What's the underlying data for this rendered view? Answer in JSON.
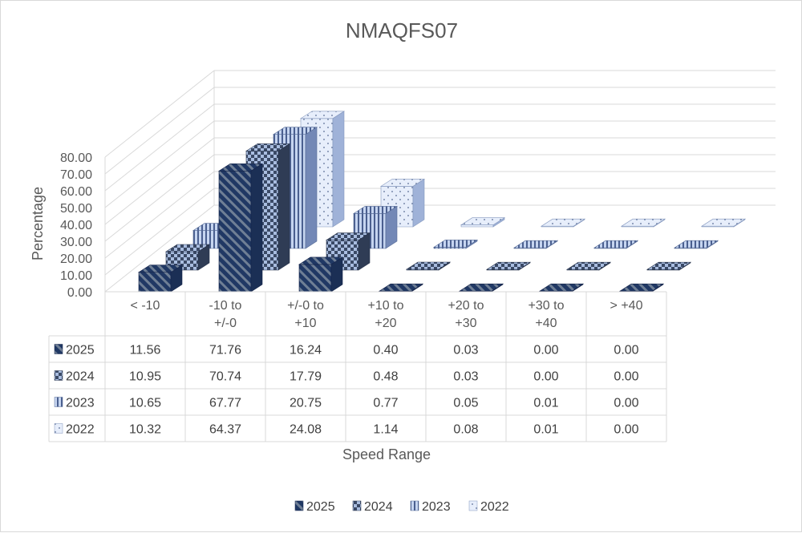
{
  "chart_data": {
    "type": "bar",
    "subtype": "3d-column-with-data-table",
    "title": "NMAQFS07",
    "xlabel": "Speed Range",
    "ylabel": "Percentage",
    "ylim": [
      0,
      80
    ],
    "yticks": [
      "0.00",
      "10.00",
      "20.00",
      "30.00",
      "40.00",
      "50.00",
      "60.00",
      "70.00",
      "80.00"
    ],
    "categories": [
      [
        "< -10"
      ],
      [
        "-10 to",
        "+/-0"
      ],
      [
        "+/-0 to",
        "+10"
      ],
      [
        "+10 to",
        "+20"
      ],
      [
        "+20 to",
        "+30"
      ],
      [
        "+30 to",
        "+40"
      ],
      [
        "> +40"
      ]
    ],
    "series": [
      {
        "name": "2025",
        "pattern": "diag",
        "values": [
          11.56,
          71.76,
          16.24,
          0.4,
          0.03,
          0.0,
          0.0
        ],
        "labels": [
          "11.56",
          "71.76",
          "16.24",
          "0.40",
          "0.03",
          "0.00",
          "0.00"
        ]
      },
      {
        "name": "2024",
        "pattern": "check",
        "values": [
          10.95,
          70.74,
          17.79,
          0.48,
          0.03,
          0.0,
          0.0
        ],
        "labels": [
          "10.95",
          "70.74",
          "17.79",
          "0.48",
          "0.03",
          "0.00",
          "0.00"
        ]
      },
      {
        "name": "2023",
        "pattern": "vstripe",
        "values": [
          10.65,
          67.77,
          20.75,
          0.77,
          0.05,
          0.01,
          0.0
        ],
        "labels": [
          "10.65",
          "67.77",
          "20.75",
          "0.77",
          "0.05",
          "0.01",
          "0.00"
        ]
      },
      {
        "name": "2022",
        "pattern": "dots",
        "values": [
          10.32,
          64.37,
          24.08,
          1.14,
          0.08,
          0.01,
          0.0
        ],
        "labels": [
          "10.32",
          "64.37",
          "24.08",
          "1.14",
          "0.08",
          "0.01",
          "0.00"
        ]
      }
    ],
    "grid": true,
    "legend": "bottom",
    "data_table": true
  }
}
